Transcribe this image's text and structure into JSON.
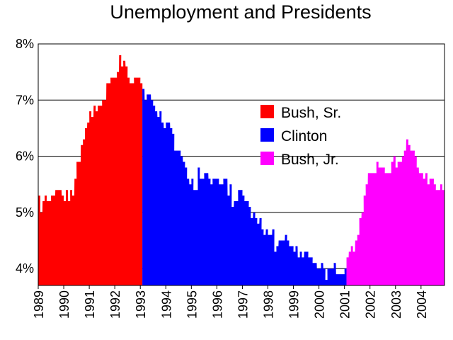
{
  "chart_data": {
    "type": "area",
    "title": "Unemployment and Presidents",
    "xlabel": "",
    "ylabel": "",
    "xlim": [
      1989,
      2004.92
    ],
    "ylim": [
      3.7,
      8.0
    ],
    "y_ticks": [
      "4%",
      "5%",
      "6%",
      "7%",
      "8%"
    ],
    "y_tick_values": [
      4,
      5,
      6,
      7,
      8
    ],
    "x_ticks": [
      "1989",
      "1990",
      "1991",
      "1992",
      "1993",
      "1994",
      "1995",
      "1996",
      "1997",
      "1998",
      "1999",
      "2000",
      "2001",
      "2002",
      "2003",
      "2004"
    ],
    "grid": "horizontal",
    "legend_position": "right",
    "series": [
      {
        "name": "Bush, Sr.",
        "color": "#ff0000",
        "x": [
          1989.0,
          1989.08,
          1989.17,
          1989.25,
          1989.33,
          1989.42,
          1989.5,
          1989.58,
          1989.67,
          1989.75,
          1989.83,
          1989.92,
          1990.0,
          1990.08,
          1990.17,
          1990.25,
          1990.33,
          1990.42,
          1990.5,
          1990.58,
          1990.67,
          1990.75,
          1990.83,
          1990.92,
          1991.0,
          1991.08,
          1991.17,
          1991.25,
          1991.33,
          1991.42,
          1991.5,
          1991.58,
          1991.67,
          1991.75,
          1991.83,
          1991.92,
          1992.0,
          1992.08,
          1992.17,
          1992.25,
          1992.33,
          1992.42,
          1992.5,
          1992.58,
          1992.67,
          1992.75,
          1992.83,
          1992.92,
          1993.0
        ],
        "values": [
          5.3,
          5.0,
          5.2,
          5.3,
          5.2,
          5.2,
          5.3,
          5.3,
          5.4,
          5.4,
          5.4,
          5.3,
          5.2,
          5.4,
          5.2,
          5.4,
          5.3,
          5.6,
          5.9,
          5.9,
          6.2,
          6.3,
          6.5,
          6.6,
          6.8,
          6.7,
          6.9,
          6.8,
          6.9,
          6.9,
          7.0,
          7.0,
          7.3,
          7.3,
          7.4,
          7.4,
          7.4,
          7.5,
          7.8,
          7.6,
          7.7,
          7.6,
          7.4,
          7.3,
          7.3,
          7.4,
          7.4,
          7.4,
          7.3
        ]
      },
      {
        "name": "Clinton",
        "color": "#0000ff",
        "x": [
          1993.08,
          1993.17,
          1993.25,
          1993.33,
          1993.42,
          1993.5,
          1993.58,
          1993.67,
          1993.75,
          1993.83,
          1993.92,
          1994.0,
          1994.08,
          1994.17,
          1994.25,
          1994.33,
          1994.42,
          1994.5,
          1994.58,
          1994.67,
          1994.75,
          1994.83,
          1994.92,
          1995.0,
          1995.08,
          1995.17,
          1995.25,
          1995.33,
          1995.42,
          1995.5,
          1995.58,
          1995.67,
          1995.75,
          1995.83,
          1995.92,
          1996.0,
          1996.08,
          1996.17,
          1996.25,
          1996.33,
          1996.42,
          1996.5,
          1996.58,
          1996.67,
          1996.75,
          1996.83,
          1996.92,
          1997.0,
          1997.08,
          1997.17,
          1997.25,
          1997.33,
          1997.42,
          1997.5,
          1997.58,
          1997.67,
          1997.75,
          1997.83,
          1997.92,
          1998.0,
          1998.08,
          1998.17,
          1998.25,
          1998.33,
          1998.42,
          1998.5,
          1998.58,
          1998.67,
          1998.75,
          1998.83,
          1998.92,
          1999.0,
          1999.08,
          1999.17,
          1999.25,
          1999.33,
          1999.42,
          1999.5,
          1999.58,
          1999.67,
          1999.75,
          1999.83,
          1999.92,
          2000.0,
          2000.08,
          2000.17,
          2000.25,
          2000.33,
          2000.42,
          2000.5,
          2000.58,
          2000.67,
          2000.75,
          2000.83,
          2000.92,
          2001.0
        ],
        "values": [
          7.2,
          7.0,
          7.1,
          7.1,
          7.0,
          6.9,
          6.8,
          6.7,
          6.8,
          6.6,
          6.5,
          6.6,
          6.6,
          6.5,
          6.4,
          6.1,
          6.1,
          6.1,
          6.0,
          5.9,
          5.8,
          5.6,
          5.5,
          5.6,
          5.4,
          5.4,
          5.8,
          5.6,
          5.6,
          5.7,
          5.7,
          5.6,
          5.5,
          5.6,
          5.6,
          5.6,
          5.5,
          5.5,
          5.6,
          5.6,
          5.3,
          5.5,
          5.1,
          5.2,
          5.2,
          5.4,
          5.4,
          5.3,
          5.2,
          5.2,
          5.1,
          4.9,
          5.0,
          4.9,
          4.8,
          4.9,
          4.7,
          4.6,
          4.7,
          4.6,
          4.6,
          4.7,
          4.3,
          4.4,
          4.5,
          4.5,
          4.5,
          4.6,
          4.5,
          4.4,
          4.4,
          4.3,
          4.4,
          4.2,
          4.3,
          4.2,
          4.3,
          4.3,
          4.2,
          4.2,
          4.1,
          4.1,
          4.0,
          4.0,
          4.1,
          4.0,
          3.8,
          4.0,
          4.0,
          4.0,
          4.1,
          3.9,
          3.9,
          3.9,
          3.9,
          4.0
        ]
      },
      {
        "name": "Bush, Jr.",
        "color": "#ff00ff",
        "x": [
          2001.08,
          2001.17,
          2001.25,
          2001.33,
          2001.42,
          2001.5,
          2001.58,
          2001.67,
          2001.75,
          2001.83,
          2001.92,
          2002.0,
          2002.08,
          2002.17,
          2002.25,
          2002.33,
          2002.42,
          2002.5,
          2002.58,
          2002.67,
          2002.75,
          2002.83,
          2002.92,
          2003.0,
          2003.08,
          2003.17,
          2003.25,
          2003.33,
          2003.42,
          2003.5,
          2003.58,
          2003.67,
          2003.75,
          2003.83,
          2003.92,
          2004.0,
          2004.08,
          2004.17,
          2004.25,
          2004.33,
          2004.42,
          2004.5,
          2004.58,
          2004.67,
          2004.75,
          2004.83,
          2004.92
        ],
        "values": [
          4.2,
          4.3,
          4.4,
          4.3,
          4.5,
          4.6,
          4.9,
          5.0,
          5.3,
          5.5,
          5.7,
          5.7,
          5.7,
          5.7,
          5.9,
          5.8,
          5.8,
          5.8,
          5.7,
          5.7,
          5.7,
          5.9,
          6.0,
          5.8,
          5.9,
          5.9,
          6.0,
          6.1,
          6.3,
          6.2,
          6.1,
          6.1,
          6.0,
          5.8,
          5.7,
          5.7,
          5.6,
          5.7,
          5.5,
          5.6,
          5.6,
          5.5,
          5.4,
          5.4,
          5.5,
          5.4,
          5.4
        ]
      }
    ]
  }
}
